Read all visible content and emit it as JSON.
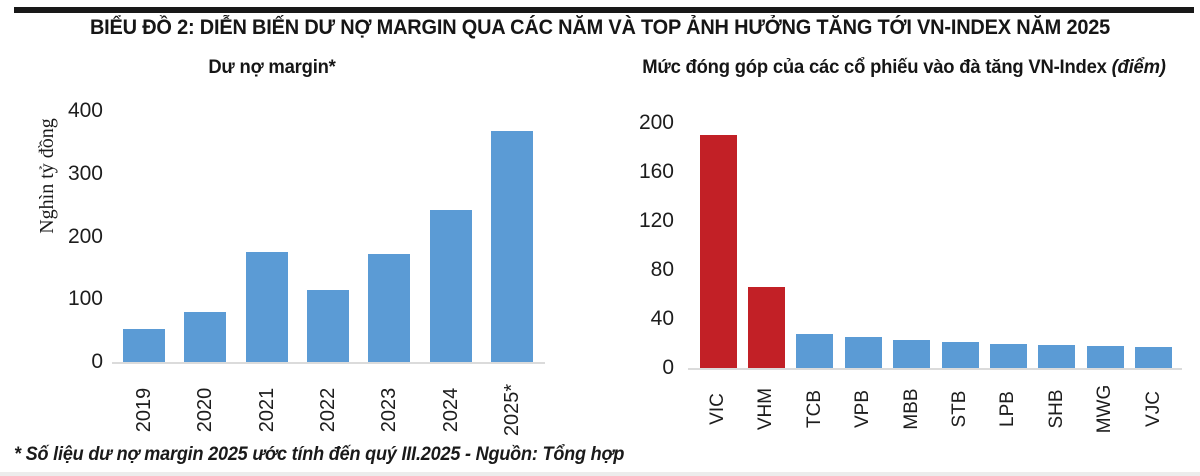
{
  "header": {
    "title": "BIỂU ĐỒ 2: DIỄN BIẾN DƯ NỢ MARGIN QUA CÁC NĂM VÀ TOP ẢNH HƯỞNG TĂNG TỚI VN-INDEX NĂM 2025"
  },
  "footer": {
    "note": "* Số liệu dư nợ margin 2025 ước tính đến quý III.2025 - Nguồn: Tổng hợp"
  },
  "colors": {
    "bar_blue": "#5b9bd5",
    "bar_red": "#c22026",
    "axis_line": "#dbdbdb",
    "text": "#1e1e1e",
    "top_rule": "#181818"
  },
  "chart_data": [
    {
      "type": "bar",
      "title": "Dư nợ margin*",
      "ylabel": "Nghìn tỷ đồng",
      "xlabel": "",
      "categories": [
        "2019",
        "2020",
        "2021",
        "2022",
        "2023",
        "2024",
        "2025*"
      ],
      "values": [
        52,
        79,
        175,
        115,
        172,
        243,
        368
      ],
      "ylim": [
        0,
        400
      ],
      "yticks": [
        0,
        100,
        200,
        300,
        400
      ],
      "bar_color": "#5b9bd5",
      "grid": false,
      "legend": null,
      "x_tick_rotation": 90
    },
    {
      "type": "bar",
      "title": "Mức đóng góp của các cổ phiếu vào đà tăng VN-Index",
      "title_suffix": "(điểm)",
      "ylabel": "",
      "xlabel": "",
      "categories": [
        "VIC",
        "VHM",
        "TCB",
        "VPB",
        "MBB",
        "STB",
        "LPB",
        "SHB",
        "MWG",
        "VJC"
      ],
      "values": [
        190,
        66,
        28,
        25,
        23,
        21,
        20,
        19,
        18,
        17
      ],
      "ylim": [
        0,
        200
      ],
      "yticks": [
        0,
        40,
        80,
        120,
        160,
        200
      ],
      "bar_color": "#5b9bd5",
      "bar_colors": [
        "#c22026",
        "#c22026",
        "#5b9bd5",
        "#5b9bd5",
        "#5b9bd5",
        "#5b9bd5",
        "#5b9bd5",
        "#5b9bd5",
        "#5b9bd5",
        "#5b9bd5"
      ],
      "grid": false,
      "legend": null,
      "x_tick_rotation": 90
    }
  ]
}
